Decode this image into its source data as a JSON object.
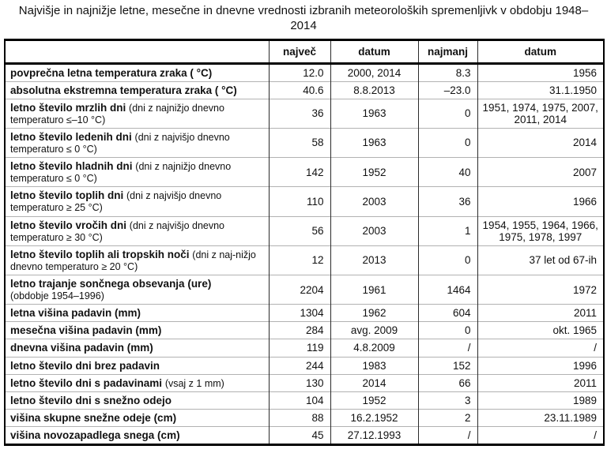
{
  "title": "Najvišje in najnižje letne, mesečne in dnevne vrednosti izbranih meteoroloških spremenljivk v obdobju 1948–2014",
  "table": {
    "headers": [
      "",
      "največ",
      "datum",
      "najmanj",
      "datum"
    ],
    "rows": [
      {
        "label": "povprečna letna temperatura zraka ( °C)",
        "note": "",
        "note_break": false,
        "cells": [
          "12.0",
          "2000, 2014",
          "8.3",
          "1956"
        ]
      },
      {
        "label": "absolutna ekstremna temperatura zraka ( °C)",
        "note": "",
        "note_break": false,
        "cells": [
          "40.6",
          "8.8.2013",
          "–23.0",
          "31.1.1950"
        ]
      },
      {
        "label": "letno število mrzlih dni",
        "note": "(dni z najnižjo dnevno temperaturo ≤–10 °C)",
        "note_break": false,
        "cells": [
          "36",
          "1963",
          "0",
          "1951, 1974, 1975, 2007, 2011, 2014"
        ]
      },
      {
        "label": "letno število ledenih dni",
        "note": "(dni z najvišjo dnevno temperaturo ≤ 0 °C)",
        "note_break": false,
        "cells": [
          "58",
          "1963",
          "0",
          "2014"
        ]
      },
      {
        "label": "letno število hladnih dni",
        "note": "(dni z najnižjo dnevno temperaturo ≤ 0 °C)",
        "note_break": false,
        "cells": [
          "142",
          "1952",
          "40",
          "2007"
        ]
      },
      {
        "label": "letno število toplih dni",
        "note": "(dni z najvišjo dnevno temperaturo ≥ 25 °C)",
        "note_break": false,
        "cells": [
          "110",
          "2003",
          "36",
          "1966"
        ]
      },
      {
        "label": "letno število vročih dni",
        "note": "(dni z najvišjo dnevno temperaturo ≥ 30 °C)",
        "note_break": false,
        "cells": [
          "56",
          "2003",
          "1",
          "1954, 1955, 1964, 1966, 1975, 1978, 1997"
        ]
      },
      {
        "label": "letno število toplih ali tropskih noči",
        "note": "(dni z naj-nižjo dnevno temperaturo ≥ 20 °C)",
        "note_break": false,
        "cells": [
          "12",
          "2013",
          "0",
          "37 let od 67-ih"
        ]
      },
      {
        "label": "letno trajanje sončnega obsevanja (ure)",
        "note": "(obdobje 1954–1996)",
        "note_break": true,
        "cells": [
          "2204",
          "1961",
          "1464",
          "1972"
        ]
      },
      {
        "label": "letna višina padavin (mm)",
        "note": "",
        "note_break": false,
        "cells": [
          "1304",
          "1962",
          "604",
          "2011"
        ]
      },
      {
        "label": "mesečna višina padavin (mm)",
        "note": "",
        "note_break": false,
        "cells": [
          "284",
          "avg. 2009",
          "0",
          "okt. 1965"
        ]
      },
      {
        "label": "dnevna višina padavin (mm)",
        "note": "",
        "note_break": false,
        "cells": [
          "119",
          "4.8.2009",
          "/",
          "/"
        ]
      },
      {
        "label": "letno število dni brez padavin",
        "note": "",
        "note_break": false,
        "cells": [
          "244",
          "1983",
          "152",
          "1996"
        ]
      },
      {
        "label": "letno število dni s padavinami",
        "note": "(vsaj z 1 mm)",
        "note_break": false,
        "cells": [
          "130",
          "2014",
          "66",
          "2011"
        ]
      },
      {
        "label": "letno število dni s snežno odejo",
        "note": "",
        "note_break": false,
        "cells": [
          "104",
          "1952",
          "3",
          "1989"
        ]
      },
      {
        "label": "višina skupne snežne odeje (cm)",
        "note": "",
        "note_break": false,
        "cells": [
          "88",
          "16.2.1952",
          "2",
          "23.11.1989"
        ]
      },
      {
        "label": "višina novozapadlega snega (cm)",
        "note": "",
        "note_break": false,
        "cells": [
          "45",
          "27.12.1993",
          "/",
          "/"
        ]
      }
    ]
  },
  "colors": {
    "background": "#ffffff",
    "text": "#111111",
    "outer_border": "#000000",
    "column_border": "#2b2b2b",
    "row_border": "#b2b2b2"
  }
}
